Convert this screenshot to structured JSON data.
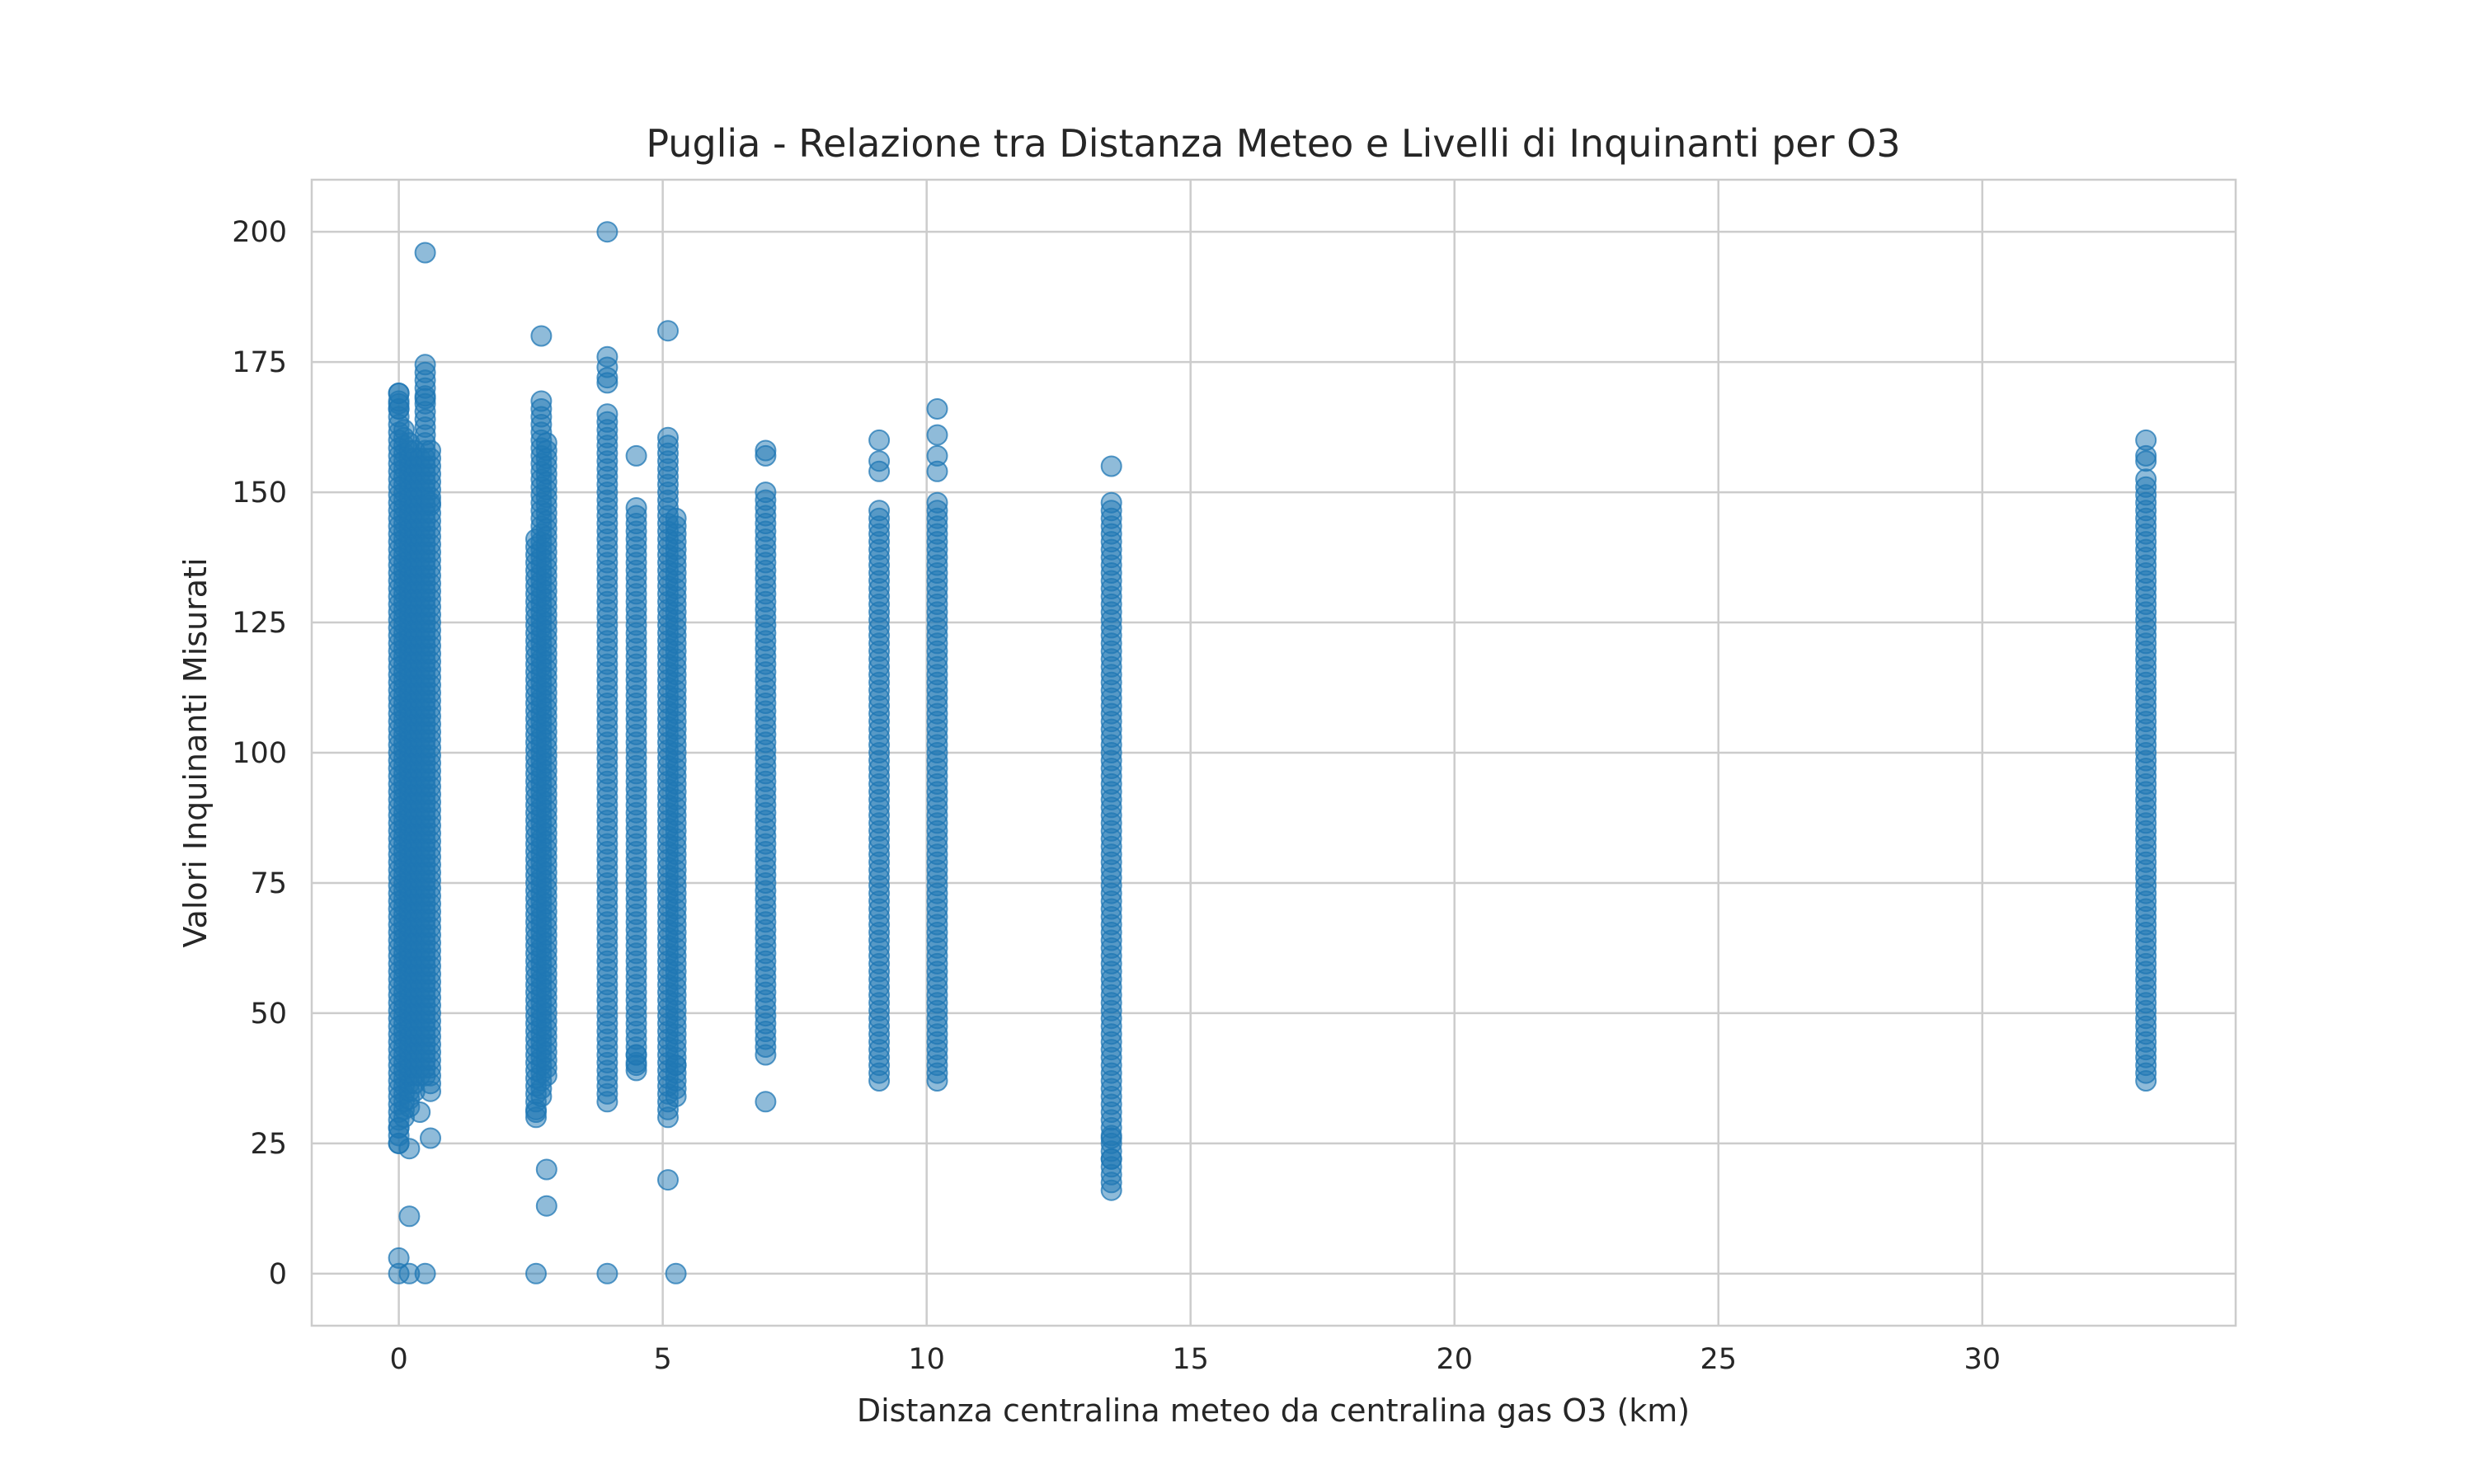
{
  "chart_data": {
    "type": "scatter",
    "title": "Puglia - Relazione tra Distanza Meteo e Livelli di Inquinanti per O3",
    "xlabel": "Distanza centralina meteo da centralina gas O3 (km)",
    "ylabel": "Valori Inquinanti Misurati",
    "xlim": [
      -1.65,
      34.8
    ],
    "ylim": [
      -10,
      210
    ],
    "xticks": [
      0,
      5,
      10,
      15,
      20,
      25,
      30
    ],
    "yticks": [
      0,
      25,
      50,
      75,
      100,
      125,
      150,
      175,
      200
    ],
    "grid": true,
    "point_color": "#1f77b4",
    "point_alpha": 0.5,
    "columns": [
      {
        "x": 0.0,
        "range": [
          25,
          169
        ],
        "outliers": [
          0,
          3,
          28,
          25,
          166,
          167,
          169
        ]
      },
      {
        "x": 0.1,
        "range": [
          30,
          163
        ],
        "outliers": []
      },
      {
        "x": 0.2,
        "range": [
          32,
          160
        ],
        "outliers": [
          24,
          11,
          0
        ]
      },
      {
        "x": 0.3,
        "range": [
          35,
          158
        ],
        "outliers": []
      },
      {
        "x": 0.4,
        "range": [
          38,
          157
        ],
        "outliers": [
          31
        ]
      },
      {
        "x": 0.5,
        "range": [
          38,
          175
        ],
        "outliers": [
          196,
          168,
          0
        ]
      },
      {
        "x": 0.6,
        "range": [
          35,
          159
        ],
        "outliers": [
          26,
          148
        ]
      },
      {
        "x": 2.6,
        "range": [
          30,
          142
        ],
        "outliers": [
          0,
          31
        ]
      },
      {
        "x": 2.7,
        "range": [
          34,
          168
        ],
        "outliers": [
          180
        ]
      },
      {
        "x": 2.8,
        "range": [
          38,
          160
        ],
        "outliers": [
          20,
          13
        ]
      },
      {
        "x": 3.95,
        "range": [
          33,
          165
        ],
        "outliers": [
          200,
          176,
          174,
          172,
          171,
          0
        ]
      },
      {
        "x": 4.5,
        "range": [
          39,
          148
        ],
        "outliers": [
          157,
          42,
          40
        ]
      },
      {
        "x": 5.1,
        "range": [
          30,
          161
        ],
        "outliers": [
          181,
          18
        ]
      },
      {
        "x": 5.25,
        "range": [
          34,
          145
        ],
        "outliers": [
          0,
          40
        ]
      },
      {
        "x": 6.95,
        "range": [
          42,
          150
        ],
        "outliers": [
          158,
          157,
          33
        ]
      },
      {
        "x": 9.1,
        "range": [
          37,
          147
        ],
        "outliers": [
          160,
          156,
          154
        ]
      },
      {
        "x": 10.2,
        "range": [
          37,
          148
        ],
        "outliers": [
          166,
          161,
          157,
          154
        ]
      },
      {
        "x": 13.5,
        "range": [
          16,
          149
        ],
        "outliers": [
          155,
          22,
          26
        ]
      },
      {
        "x": 33.1,
        "range": [
          37,
          153
        ],
        "outliers": [
          160,
          157,
          156
        ]
      }
    ]
  }
}
